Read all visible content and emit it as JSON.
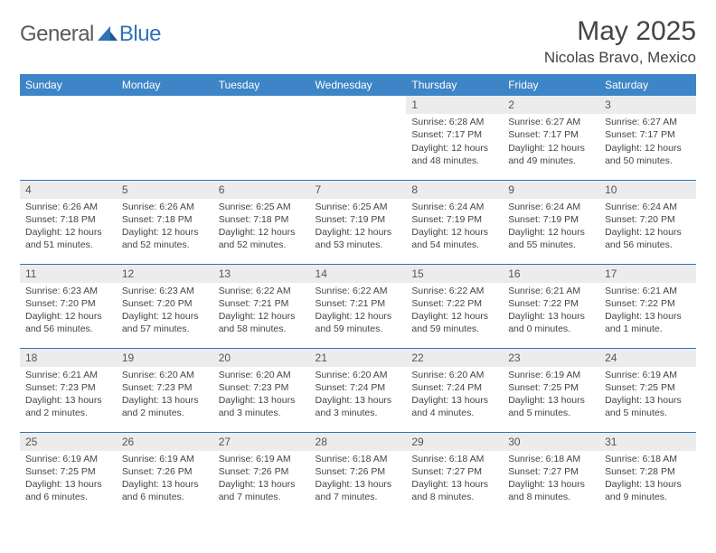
{
  "brand": {
    "part1": "General",
    "part2": "Blue"
  },
  "title": "May 2025",
  "location": "Nicolas Bravo, Mexico",
  "colors": {
    "header_bg": "#3d85c6",
    "border": "#2f72b8",
    "daynum_bg": "#ececec",
    "text": "#444444"
  },
  "weekdays": [
    "Sunday",
    "Monday",
    "Tuesday",
    "Wednesday",
    "Thursday",
    "Friday",
    "Saturday"
  ],
  "weeks": [
    [
      null,
      null,
      null,
      null,
      {
        "n": "1",
        "sr": "Sunrise: 6:28 AM",
        "ss": "Sunset: 7:17 PM",
        "dl": "Daylight: 12 hours and 48 minutes."
      },
      {
        "n": "2",
        "sr": "Sunrise: 6:27 AM",
        "ss": "Sunset: 7:17 PM",
        "dl": "Daylight: 12 hours and 49 minutes."
      },
      {
        "n": "3",
        "sr": "Sunrise: 6:27 AM",
        "ss": "Sunset: 7:17 PM",
        "dl": "Daylight: 12 hours and 50 minutes."
      }
    ],
    [
      {
        "n": "4",
        "sr": "Sunrise: 6:26 AM",
        "ss": "Sunset: 7:18 PM",
        "dl": "Daylight: 12 hours and 51 minutes."
      },
      {
        "n": "5",
        "sr": "Sunrise: 6:26 AM",
        "ss": "Sunset: 7:18 PM",
        "dl": "Daylight: 12 hours and 52 minutes."
      },
      {
        "n": "6",
        "sr": "Sunrise: 6:25 AM",
        "ss": "Sunset: 7:18 PM",
        "dl": "Daylight: 12 hours and 52 minutes."
      },
      {
        "n": "7",
        "sr": "Sunrise: 6:25 AM",
        "ss": "Sunset: 7:19 PM",
        "dl": "Daylight: 12 hours and 53 minutes."
      },
      {
        "n": "8",
        "sr": "Sunrise: 6:24 AM",
        "ss": "Sunset: 7:19 PM",
        "dl": "Daylight: 12 hours and 54 minutes."
      },
      {
        "n": "9",
        "sr": "Sunrise: 6:24 AM",
        "ss": "Sunset: 7:19 PM",
        "dl": "Daylight: 12 hours and 55 minutes."
      },
      {
        "n": "10",
        "sr": "Sunrise: 6:24 AM",
        "ss": "Sunset: 7:20 PM",
        "dl": "Daylight: 12 hours and 56 minutes."
      }
    ],
    [
      {
        "n": "11",
        "sr": "Sunrise: 6:23 AM",
        "ss": "Sunset: 7:20 PM",
        "dl": "Daylight: 12 hours and 56 minutes."
      },
      {
        "n": "12",
        "sr": "Sunrise: 6:23 AM",
        "ss": "Sunset: 7:20 PM",
        "dl": "Daylight: 12 hours and 57 minutes."
      },
      {
        "n": "13",
        "sr": "Sunrise: 6:22 AM",
        "ss": "Sunset: 7:21 PM",
        "dl": "Daylight: 12 hours and 58 minutes."
      },
      {
        "n": "14",
        "sr": "Sunrise: 6:22 AM",
        "ss": "Sunset: 7:21 PM",
        "dl": "Daylight: 12 hours and 59 minutes."
      },
      {
        "n": "15",
        "sr": "Sunrise: 6:22 AM",
        "ss": "Sunset: 7:22 PM",
        "dl": "Daylight: 12 hours and 59 minutes."
      },
      {
        "n": "16",
        "sr": "Sunrise: 6:21 AM",
        "ss": "Sunset: 7:22 PM",
        "dl": "Daylight: 13 hours and 0 minutes."
      },
      {
        "n": "17",
        "sr": "Sunrise: 6:21 AM",
        "ss": "Sunset: 7:22 PM",
        "dl": "Daylight: 13 hours and 1 minute."
      }
    ],
    [
      {
        "n": "18",
        "sr": "Sunrise: 6:21 AM",
        "ss": "Sunset: 7:23 PM",
        "dl": "Daylight: 13 hours and 2 minutes."
      },
      {
        "n": "19",
        "sr": "Sunrise: 6:20 AM",
        "ss": "Sunset: 7:23 PM",
        "dl": "Daylight: 13 hours and 2 minutes."
      },
      {
        "n": "20",
        "sr": "Sunrise: 6:20 AM",
        "ss": "Sunset: 7:23 PM",
        "dl": "Daylight: 13 hours and 3 minutes."
      },
      {
        "n": "21",
        "sr": "Sunrise: 6:20 AM",
        "ss": "Sunset: 7:24 PM",
        "dl": "Daylight: 13 hours and 3 minutes."
      },
      {
        "n": "22",
        "sr": "Sunrise: 6:20 AM",
        "ss": "Sunset: 7:24 PM",
        "dl": "Daylight: 13 hours and 4 minutes."
      },
      {
        "n": "23",
        "sr": "Sunrise: 6:19 AM",
        "ss": "Sunset: 7:25 PM",
        "dl": "Daylight: 13 hours and 5 minutes."
      },
      {
        "n": "24",
        "sr": "Sunrise: 6:19 AM",
        "ss": "Sunset: 7:25 PM",
        "dl": "Daylight: 13 hours and 5 minutes."
      }
    ],
    [
      {
        "n": "25",
        "sr": "Sunrise: 6:19 AM",
        "ss": "Sunset: 7:25 PM",
        "dl": "Daylight: 13 hours and 6 minutes."
      },
      {
        "n": "26",
        "sr": "Sunrise: 6:19 AM",
        "ss": "Sunset: 7:26 PM",
        "dl": "Daylight: 13 hours and 6 minutes."
      },
      {
        "n": "27",
        "sr": "Sunrise: 6:19 AM",
        "ss": "Sunset: 7:26 PM",
        "dl": "Daylight: 13 hours and 7 minutes."
      },
      {
        "n": "28",
        "sr": "Sunrise: 6:18 AM",
        "ss": "Sunset: 7:26 PM",
        "dl": "Daylight: 13 hours and 7 minutes."
      },
      {
        "n": "29",
        "sr": "Sunrise: 6:18 AM",
        "ss": "Sunset: 7:27 PM",
        "dl": "Daylight: 13 hours and 8 minutes."
      },
      {
        "n": "30",
        "sr": "Sunrise: 6:18 AM",
        "ss": "Sunset: 7:27 PM",
        "dl": "Daylight: 13 hours and 8 minutes."
      },
      {
        "n": "31",
        "sr": "Sunrise: 6:18 AM",
        "ss": "Sunset: 7:28 PM",
        "dl": "Daylight: 13 hours and 9 minutes."
      }
    ]
  ]
}
